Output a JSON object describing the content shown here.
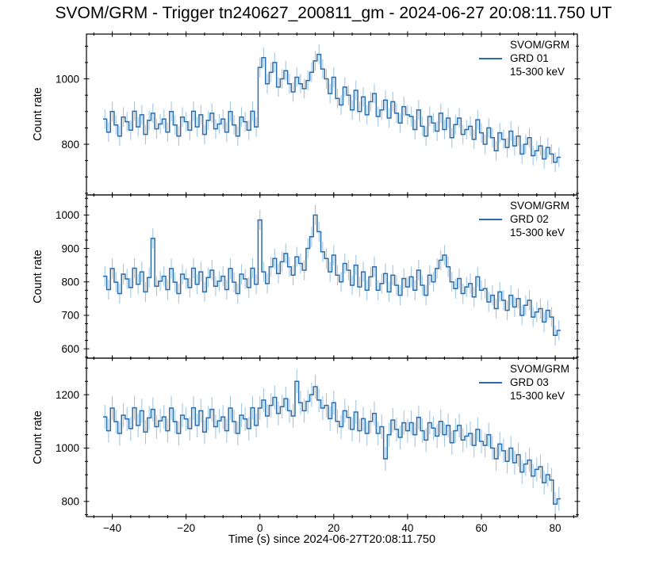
{
  "title": "SVOM/GRM - Trigger tn240627_200811_gm - 2024-06-27 20:08:11.750 UT",
  "xlabel": "Time (s) since 2024-06-27T20:08:11.750",
  "ylabel": "Count rate",
  "colors": {
    "line": "#2b6cac",
    "error_bar": "#a3c6e3",
    "axis": "#000000",
    "background": "#ffffff",
    "text": "#000000"
  },
  "chart_data": [
    {
      "type": "line",
      "style": "step-with-errorbars",
      "name": "GRD 01",
      "legend": [
        "SVOM/GRM",
        "GRD 01",
        "15-300 keV"
      ],
      "xlim": [
        -47,
        86
      ],
      "ylim": [
        645,
        1137
      ],
      "xticks": [
        -40,
        -20,
        0,
        20,
        40,
        60,
        80
      ],
      "xminor_step": 5,
      "yticks": [
        800,
        1000
      ],
      "yminor_step": 50,
      "show_xticklabels": false,
      "bin_start": -42,
      "bin_width": 1,
      "yerr": 30,
      "values": [
        877,
        837,
        900,
        859,
        825,
        883,
        869,
        843,
        901,
        853,
        890,
        830,
        873,
        895,
        847,
        862,
        877,
        837,
        900,
        859,
        825,
        883,
        869,
        843,
        901,
        853,
        890,
        830,
        873,
        895,
        847,
        862,
        877,
        837,
        900,
        859,
        825,
        883,
        869,
        843,
        901,
        853,
        1035,
        1065,
        985,
        1020,
        1050,
        975,
        1000,
        1025,
        985,
        960,
        1005,
        985,
        970,
        995,
        1020,
        1055,
        1075,
        1030,
        1000,
        955,
        1005,
        940,
        920,
        975,
        950,
        905,
        965,
        900,
        945,
        890,
        930,
        955,
        885,
        905,
        935,
        880,
        930,
        895,
        865,
        915,
        890,
        885,
        845,
        905,
        855,
        825,
        885,
        865,
        840,
        895,
        845,
        880,
        820,
        860,
        880,
        830,
        845,
        855,
        815,
        875,
        835,
        800,
        850,
        820,
        780,
        835,
        815,
        790,
        840,
        795,
        825,
        770,
        800,
        820,
        765,
        780,
        795,
        755,
        790,
        770,
        745,
        760
      ]
    },
    {
      "type": "line",
      "style": "step-with-errorbars",
      "name": "GRD 02",
      "legend": [
        "SVOM/GRM",
        "GRD 02",
        "15-300 keV"
      ],
      "xlim": [
        -47,
        86
      ],
      "ylim": [
        572,
        1060
      ],
      "xticks": [
        -40,
        -20,
        0,
        20,
        40,
        60,
        80
      ],
      "xminor_step": 5,
      "yticks": [
        600,
        700,
        800,
        900,
        1000
      ],
      "yminor_step": 25,
      "show_xticklabels": false,
      "bin_start": -42,
      "bin_width": 1,
      "yerr": 30,
      "values": [
        817,
        777,
        840,
        799,
        765,
        823,
        809,
        783,
        841,
        793,
        830,
        770,
        813,
        930,
        787,
        802,
        817,
        777,
        840,
        799,
        765,
        823,
        809,
        783,
        841,
        793,
        830,
        770,
        813,
        835,
        787,
        802,
        817,
        777,
        840,
        799,
        765,
        823,
        809,
        783,
        841,
        793,
        985,
        830,
        795,
        845,
        870,
        825,
        860,
        885,
        845,
        820,
        875,
        855,
        835,
        900,
        935,
        1000,
        950,
        890,
        870,
        830,
        880,
        820,
        800,
        855,
        835,
        790,
        850,
        785,
        830,
        775,
        815,
        845,
        775,
        795,
        825,
        770,
        820,
        790,
        760,
        810,
        785,
        815,
        775,
        835,
        790,
        760,
        820,
        800,
        840,
        865,
        880,
        845,
        800,
        780,
        810,
        765,
        785,
        795,
        755,
        815,
        775,
        780,
        740,
        760,
        720,
        770,
        745,
        715,
        760,
        725,
        750,
        700,
        730,
        745,
        695,
        710,
        720,
        680,
        715,
        695,
        640,
        655
      ]
    },
    {
      "type": "line",
      "style": "step-with-errorbars",
      "name": "GRD 03",
      "legend": [
        "SVOM/GRM",
        "GRD 03",
        "15-300 keV"
      ],
      "xlim": [
        -47,
        86
      ],
      "ylim": [
        743,
        1337
      ],
      "xticks": [
        -40,
        -20,
        0,
        20,
        40,
        60,
        80
      ],
      "xminor_step": 5,
      "yticks": [
        800,
        1000,
        1200
      ],
      "yminor_step": 50,
      "show_xticklabels": true,
      "bin_start": -42,
      "bin_width": 1,
      "yerr": 45,
      "values": [
        1117,
        1065,
        1150,
        1099,
        1055,
        1123,
        1109,
        1073,
        1151,
        1085,
        1140,
        1060,
        1113,
        1145,
        1080,
        1102,
        1117,
        1065,
        1150,
        1099,
        1055,
        1123,
        1109,
        1073,
        1151,
        1085,
        1140,
        1060,
        1113,
        1145,
        1080,
        1102,
        1117,
        1065,
        1150,
        1099,
        1055,
        1123,
        1109,
        1073,
        1151,
        1085,
        1150,
        1180,
        1120,
        1160,
        1190,
        1130,
        1155,
        1185,
        1140,
        1120,
        1250,
        1170,
        1140,
        1175,
        1200,
        1230,
        1180,
        1150,
        1160,
        1110,
        1170,
        1100,
        1080,
        1140,
        1115,
        1070,
        1135,
        1065,
        1110,
        1055,
        1100,
        1130,
        1055,
        1080,
        960,
        1050,
        1105,
        1070,
        1040,
        1095,
        1065,
        1095,
        1050,
        1115,
        1065,
        1030,
        1095,
        1075,
        1045,
        1100,
        1050,
        1085,
        1020,
        1065,
        1085,
        1030,
        1045,
        1055,
        1010,
        1070,
        1025,
        1010,
        1050,
        1000,
        960,
        1015,
        990,
        950,
        1000,
        945,
        975,
        910,
        940,
        955,
        895,
        920,
        930,
        870,
        900,
        880,
        790,
        810
      ]
    }
  ]
}
